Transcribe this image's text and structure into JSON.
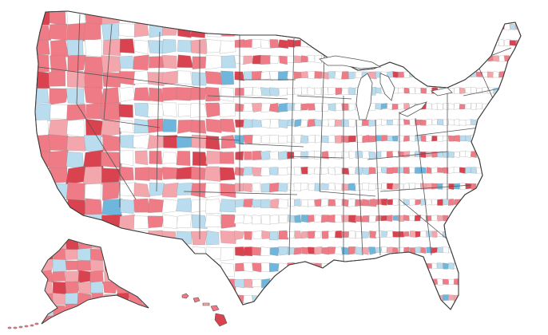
{
  "map": {
    "type": "choropleth",
    "region": "United States",
    "unit": "county",
    "classes": [
      {
        "key": "dark_red",
        "color": "#d9434f"
      },
      {
        "key": "red",
        "color": "#ee7b85"
      },
      {
        "key": "light_red",
        "color": "#f4a6ad"
      },
      {
        "key": "dark_blue",
        "color": "#6fb6dd"
      },
      {
        "key": "light_blue",
        "color": "#b9dcef"
      },
      {
        "key": "none",
        "color": "#ffffff"
      }
    ],
    "county_stroke": "#8a8a8a",
    "state_stroke": "#555555"
  }
}
